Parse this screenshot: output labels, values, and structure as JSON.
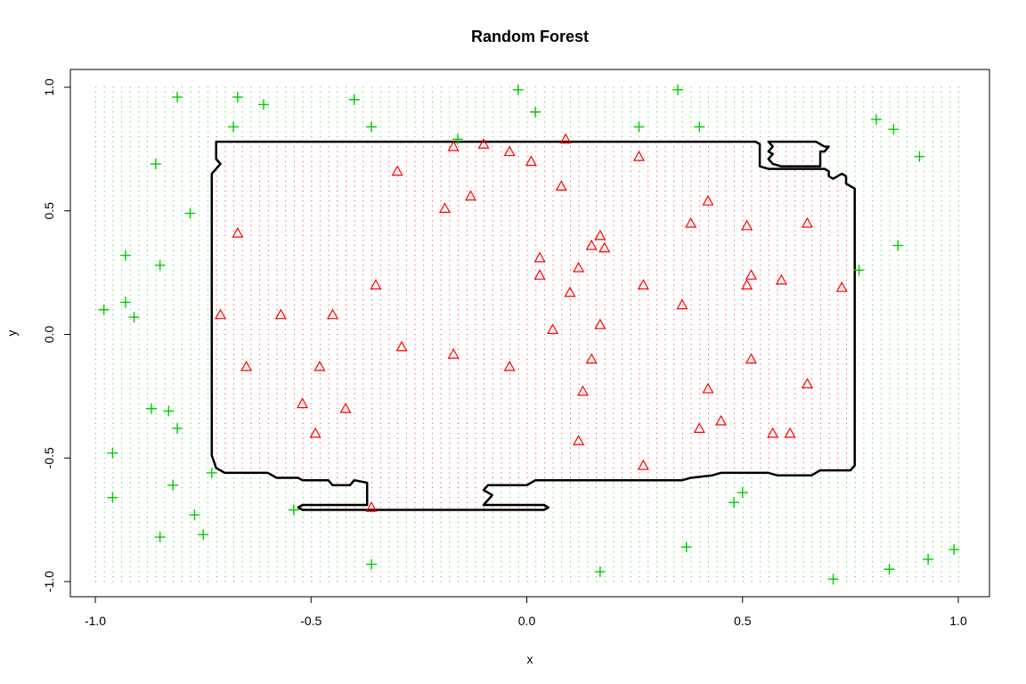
{
  "chart_data": {
    "type": "scatter",
    "title": "Random Forest",
    "xlabel": "x",
    "ylabel": "y",
    "xlim": [
      -1.0,
      1.0
    ],
    "ylim": [
      -1.0,
      1.0
    ],
    "x_ticks": [
      "-1.0",
      "-0.5",
      "0.0",
      "0.5",
      "1.0"
    ],
    "y_ticks": [
      "-1.0",
      "-0.5",
      "0.0",
      "0.5",
      "1.0"
    ],
    "grid": false,
    "legend": "none",
    "background_grid": {
      "description": "classification grid of small dots",
      "step": 0.02,
      "inside_color": "#ff0000",
      "outside_color": "#00cc00"
    },
    "decision_boundary": [
      [
        -0.72,
        0.78
      ],
      [
        0.53,
        0.78
      ],
      [
        0.54,
        0.77
      ],
      [
        0.54,
        0.68
      ],
      [
        0.56,
        0.67
      ],
      [
        0.69,
        0.67
      ],
      [
        0.7,
        0.66
      ],
      [
        0.7,
        0.64
      ],
      [
        0.71,
        0.63
      ],
      [
        0.72,
        0.64
      ],
      [
        0.73,
        0.65
      ],
      [
        0.74,
        0.64
      ],
      [
        0.74,
        0.61
      ],
      [
        0.75,
        0.6
      ],
      [
        0.76,
        0.59
      ],
      [
        0.76,
        -0.53
      ],
      [
        0.75,
        -0.55
      ],
      [
        0.68,
        -0.55
      ],
      [
        0.66,
        -0.57
      ],
      [
        0.58,
        -0.57
      ],
      [
        0.56,
        -0.56
      ],
      [
        0.45,
        -0.56
      ],
      [
        0.43,
        -0.57
      ],
      [
        0.38,
        -0.58
      ],
      [
        0.36,
        -0.59
      ],
      [
        0.02,
        -0.59
      ],
      [
        0.0,
        -0.61
      ],
      [
        -0.09,
        -0.61
      ],
      [
        -0.1,
        -0.63
      ],
      [
        -0.09,
        -0.64
      ],
      [
        -0.08,
        -0.65
      ],
      [
        -0.09,
        -0.67
      ],
      [
        -0.1,
        -0.69
      ],
      [
        0.04,
        -0.69
      ],
      [
        0.05,
        -0.7
      ],
      [
        0.04,
        -0.71
      ],
      [
        -0.52,
        -0.71
      ],
      [
        -0.53,
        -0.7
      ],
      [
        -0.52,
        -0.69
      ],
      [
        -0.37,
        -0.69
      ],
      [
        -0.37,
        -0.6
      ],
      [
        -0.4,
        -0.59
      ],
      [
        -0.41,
        -0.61
      ],
      [
        -0.45,
        -0.61
      ],
      [
        -0.46,
        -0.59
      ],
      [
        -0.52,
        -0.59
      ],
      [
        -0.53,
        -0.58
      ],
      [
        -0.58,
        -0.58
      ],
      [
        -0.6,
        -0.56
      ],
      [
        -0.7,
        -0.56
      ],
      [
        -0.72,
        -0.54
      ],
      [
        -0.73,
        -0.49
      ],
      [
        -0.73,
        0.65
      ],
      [
        -0.72,
        0.67
      ],
      [
        -0.71,
        0.69
      ],
      [
        -0.72,
        0.71
      ],
      [
        -0.72,
        0.78
      ]
    ],
    "decision_boundary_2": [
      [
        0.56,
        0.78
      ],
      [
        0.67,
        0.78
      ],
      [
        0.69,
        0.76
      ],
      [
        0.7,
        0.76
      ],
      [
        0.69,
        0.74
      ],
      [
        0.68,
        0.74
      ],
      [
        0.68,
        0.68
      ],
      [
        0.59,
        0.68
      ],
      [
        0.57,
        0.69
      ],
      [
        0.56,
        0.71
      ],
      [
        0.57,
        0.73
      ],
      [
        0.56,
        0.74
      ],
      [
        0.57,
        0.76
      ],
      [
        0.56,
        0.78
      ]
    ],
    "series": [
      {
        "marker": "triangle",
        "color": "#ff0000",
        "points": [
          [
            -0.71,
            0.08
          ],
          [
            -0.67,
            0.41
          ],
          [
            -0.65,
            -0.13
          ],
          [
            -0.57,
            0.08
          ],
          [
            -0.52,
            -0.28
          ],
          [
            -0.49,
            -0.4
          ],
          [
            -0.48,
            -0.13
          ],
          [
            -0.45,
            0.08
          ],
          [
            -0.42,
            -0.3
          ],
          [
            -0.36,
            -0.7
          ],
          [
            -0.35,
            0.2
          ],
          [
            -0.3,
            0.66
          ],
          [
            -0.29,
            -0.05
          ],
          [
            -0.19,
            0.51
          ],
          [
            -0.17,
            0.76
          ],
          [
            -0.17,
            -0.08
          ],
          [
            -0.13,
            0.56
          ],
          [
            -0.1,
            0.77
          ],
          [
            -0.04,
            0.74
          ],
          [
            -0.04,
            -0.13
          ],
          [
            0.01,
            0.7
          ],
          [
            0.03,
            0.31
          ],
          [
            0.03,
            0.24
          ],
          [
            0.06,
            0.02
          ],
          [
            0.08,
            0.6
          ],
          [
            0.09,
            0.79
          ],
          [
            0.1,
            0.17
          ],
          [
            0.12,
            0.27
          ],
          [
            0.12,
            -0.43
          ],
          [
            0.13,
            -0.23
          ],
          [
            0.15,
            0.36
          ],
          [
            0.15,
            -0.1
          ],
          [
            0.17,
            0.4
          ],
          [
            0.17,
            0.04
          ],
          [
            0.18,
            0.35
          ],
          [
            0.26,
            0.72
          ],
          [
            0.27,
            0.2
          ],
          [
            0.27,
            -0.53
          ],
          [
            0.36,
            0.12
          ],
          [
            0.38,
            0.45
          ],
          [
            0.4,
            -0.38
          ],
          [
            0.42,
            0.54
          ],
          [
            0.42,
            -0.22
          ],
          [
            0.45,
            -0.35
          ],
          [
            0.51,
            0.44
          ],
          [
            0.51,
            0.2
          ],
          [
            0.52,
            -0.1
          ],
          [
            0.52,
            0.24
          ],
          [
            0.57,
            -0.4
          ],
          [
            0.59,
            0.22
          ],
          [
            0.61,
            -0.4
          ],
          [
            0.65,
            0.45
          ],
          [
            0.65,
            -0.2
          ],
          [
            0.73,
            0.19
          ]
        ]
      },
      {
        "marker": "plus",
        "color": "#00cc00",
        "points": [
          [
            -0.98,
            0.1
          ],
          [
            -0.96,
            -0.48
          ],
          [
            -0.96,
            -0.66
          ],
          [
            -0.93,
            0.32
          ],
          [
            -0.93,
            0.13
          ],
          [
            -0.91,
            0.07
          ],
          [
            -0.87,
            -0.3
          ],
          [
            -0.86,
            0.69
          ],
          [
            -0.85,
            0.28
          ],
          [
            -0.85,
            -0.82
          ],
          [
            -0.83,
            -0.31
          ],
          [
            -0.82,
            -0.61
          ],
          [
            -0.81,
            0.96
          ],
          [
            -0.81,
            -0.38
          ],
          [
            -0.78,
            0.49
          ],
          [
            -0.77,
            -0.73
          ],
          [
            -0.75,
            -0.81
          ],
          [
            -0.73,
            -0.56
          ],
          [
            -0.68,
            0.84
          ],
          [
            -0.67,
            0.96
          ],
          [
            -0.61,
            0.93
          ],
          [
            -0.54,
            -0.71
          ],
          [
            -0.4,
            0.95
          ],
          [
            -0.36,
            0.84
          ],
          [
            -0.36,
            -0.93
          ],
          [
            -0.16,
            0.79
          ],
          [
            -0.02,
            0.99
          ],
          [
            0.02,
            0.9
          ],
          [
            0.17,
            -0.96
          ],
          [
            0.26,
            0.84
          ],
          [
            0.35,
            0.99
          ],
          [
            0.37,
            -0.86
          ],
          [
            0.4,
            0.84
          ],
          [
            0.48,
            -0.68
          ],
          [
            0.5,
            -0.64
          ],
          [
            0.71,
            -0.99
          ],
          [
            0.77,
            0.26
          ],
          [
            0.81,
            0.87
          ],
          [
            0.84,
            -0.95
          ],
          [
            0.85,
            0.83
          ],
          [
            0.86,
            0.36
          ],
          [
            0.91,
            0.72
          ],
          [
            0.93,
            -0.91
          ],
          [
            0.99,
            -0.87
          ]
        ]
      }
    ]
  }
}
